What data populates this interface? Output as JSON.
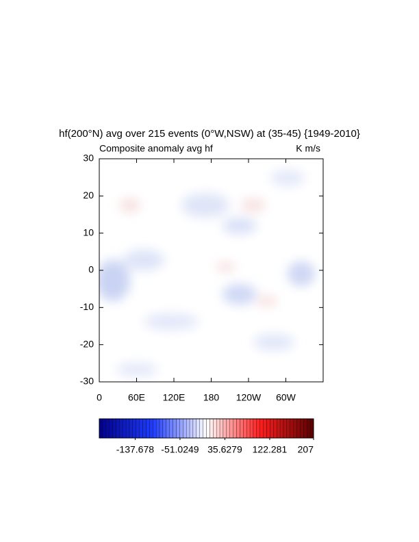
{
  "chart_data": {
    "type": "contour",
    "title": "hf(200°N) avg over 215 events (0°W,NSW) at (35-45) {1949-2010}",
    "left_subtitle": "Composite anomaly avg hf",
    "right_subtitle": "K m/s",
    "xlim": [
      0,
      360
    ],
    "xticks": [
      0,
      {
        "value": 60,
        "label": "60E"
      },
      {
        "value": 120,
        "label": "120E"
      },
      180,
      {
        "value": 240,
        "label": "120W"
      },
      {
        "value": 300,
        "label": "60W"
      }
    ],
    "ylim": [
      -30,
      30
    ],
    "yticks": [
      -30,
      -20,
      -10,
      0,
      10,
      20,
      30
    ],
    "colorbar": {
      "lim": [
        -207,
        207
      ],
      "ticks": [
        -137.678,
        -51.0249,
        35.6279,
        122.281,
        207
      ],
      "colors": [
        "#00008b",
        "#1e3cff",
        "#ffffff",
        "#ff1e1e",
        "#5a0000"
      ]
    }
  }
}
